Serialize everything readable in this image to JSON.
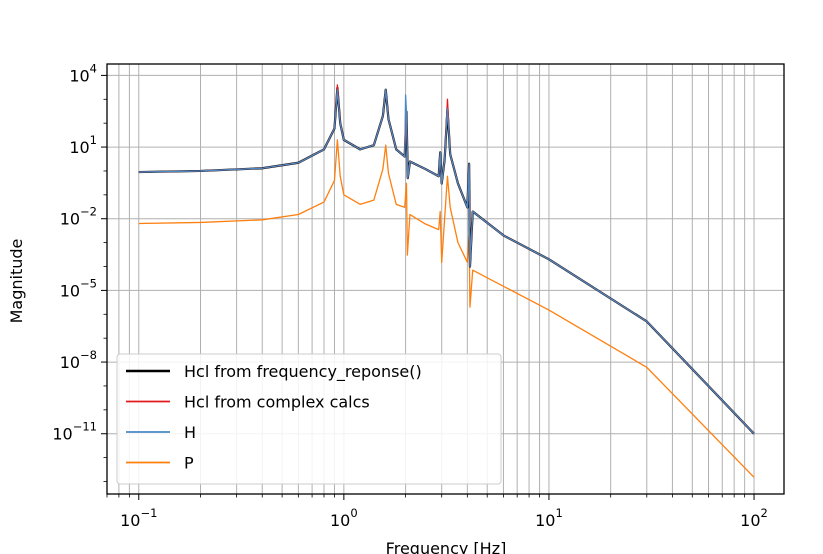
{
  "chart_data": {
    "type": "line",
    "title": "",
    "xlabel": "Frequency [Hz]",
    "ylabel": "Magnitude",
    "xscale": "log",
    "yscale": "log",
    "xlim": [
      0.07,
      140
    ],
    "ylim": [
      3e-14,
      30000
    ],
    "grid": true,
    "legend_position": "lower-left",
    "x_ticks": [
      {
        "base": "10",
        "exp": "−1",
        "value": 0.1
      },
      {
        "base": "10",
        "exp": "0",
        "value": 1
      },
      {
        "base": "10",
        "exp": "1",
        "value": 10
      },
      {
        "base": "10",
        "exp": "2",
        "value": 100
      }
    ],
    "y_ticks": [
      {
        "base": "10",
        "exp": "4",
        "value": 10000
      },
      {
        "base": "10",
        "exp": "1",
        "value": 10
      },
      {
        "base": "10",
        "exp": "−2",
        "value": 0.01
      },
      {
        "base": "10",
        "exp": "−5",
        "value": 1e-05
      },
      {
        "base": "10",
        "exp": "−8",
        "value": 1e-08
      },
      {
        "base": "10",
        "exp": "−11",
        "value": 1e-11
      }
    ],
    "series": [
      {
        "name": "Hcl from frequency_reponse()",
        "color": "#000000",
        "width": 2.2,
        "points": [
          [
            0.1,
            0.9
          ],
          [
            0.2,
            1.0
          ],
          [
            0.4,
            1.3
          ],
          [
            0.6,
            2.2
          ],
          [
            0.8,
            8
          ],
          [
            0.9,
            60
          ],
          [
            0.93,
            3000
          ],
          [
            0.96,
            100
          ],
          [
            1.0,
            20
          ],
          [
            1.2,
            8
          ],
          [
            1.4,
            12
          ],
          [
            1.55,
            200
          ],
          [
            1.6,
            2500
          ],
          [
            1.65,
            150
          ],
          [
            1.8,
            8
          ],
          [
            1.98,
            4
          ],
          [
            2.02,
            300
          ],
          [
            2.05,
            0.5
          ],
          [
            2.1,
            2.5
          ],
          [
            2.5,
            1.2
          ],
          [
            2.9,
            0.6
          ],
          [
            2.95,
            6
          ],
          [
            3.0,
            0.3
          ],
          [
            3.1,
            3
          ],
          [
            3.2,
            400
          ],
          [
            3.3,
            5
          ],
          [
            3.6,
            0.3
          ],
          [
            4.0,
            0.03
          ],
          [
            4.08,
            2
          ],
          [
            4.12,
            0.0001
          ],
          [
            4.25,
            0.02
          ],
          [
            6,
            0.002
          ],
          [
            10,
            0.0002
          ],
          [
            30,
            5e-07
          ],
          [
            100,
            1e-11
          ]
        ]
      },
      {
        "name": "Hcl from complex calcs",
        "color": "#e41a1c",
        "width": 1.3,
        "points": [
          [
            0.1,
            0.9
          ],
          [
            0.2,
            1.0
          ],
          [
            0.4,
            1.3
          ],
          [
            0.6,
            2.2
          ],
          [
            0.8,
            8
          ],
          [
            0.9,
            60
          ],
          [
            0.93,
            4000
          ],
          [
            0.96,
            100
          ],
          [
            1.0,
            20
          ],
          [
            1.2,
            8
          ],
          [
            1.4,
            12
          ],
          [
            1.55,
            200
          ],
          [
            1.6,
            2500
          ],
          [
            1.65,
            150
          ],
          [
            1.8,
            8
          ],
          [
            1.98,
            4
          ],
          [
            2.02,
            300
          ],
          [
            2.05,
            0.5
          ],
          [
            2.1,
            2.5
          ],
          [
            2.5,
            1.2
          ],
          [
            2.9,
            0.6
          ],
          [
            2.95,
            6
          ],
          [
            3.0,
            0.3
          ],
          [
            3.1,
            3
          ],
          [
            3.2,
            1000
          ],
          [
            3.3,
            5
          ],
          [
            3.6,
            0.3
          ],
          [
            4.0,
            0.03
          ],
          [
            4.08,
            2
          ],
          [
            4.12,
            0.0001
          ],
          [
            4.25,
            0.02
          ],
          [
            6,
            0.002
          ],
          [
            10,
            0.0002
          ],
          [
            30,
            5e-07
          ],
          [
            100,
            1e-11
          ]
        ]
      },
      {
        "name": "H",
        "color": "#4a8ac4",
        "width": 1.3,
        "points": [
          [
            0.1,
            0.9
          ],
          [
            0.2,
            1.0
          ],
          [
            0.4,
            1.3
          ],
          [
            0.6,
            2.2
          ],
          [
            0.8,
            8
          ],
          [
            0.9,
            60
          ],
          [
            0.93,
            2500
          ],
          [
            0.96,
            100
          ],
          [
            1.0,
            20
          ],
          [
            1.2,
            8
          ],
          [
            1.4,
            12
          ],
          [
            1.55,
            200
          ],
          [
            1.6,
            2500
          ],
          [
            1.65,
            150
          ],
          [
            1.8,
            8
          ],
          [
            1.98,
            4
          ],
          [
            2.0,
            1500
          ],
          [
            2.02,
            300
          ],
          [
            2.05,
            0.5
          ],
          [
            2.1,
            2.5
          ],
          [
            2.5,
            1.2
          ],
          [
            2.9,
            0.6
          ],
          [
            2.95,
            6
          ],
          [
            3.0,
            0.3
          ],
          [
            3.1,
            3
          ],
          [
            3.2,
            400
          ],
          [
            3.3,
            5
          ],
          [
            3.6,
            0.3
          ],
          [
            4.0,
            0.03
          ],
          [
            4.08,
            2
          ],
          [
            4.12,
            0.0001
          ],
          [
            4.25,
            0.02
          ],
          [
            6,
            0.002
          ],
          [
            10,
            0.0002
          ],
          [
            30,
            5e-07
          ],
          [
            100,
            1e-11
          ]
        ]
      },
      {
        "name": "P",
        "color": "#ff7f0e",
        "width": 1.3,
        "points": [
          [
            0.1,
            0.0063
          ],
          [
            0.2,
            0.007
          ],
          [
            0.4,
            0.009
          ],
          [
            0.6,
            0.015
          ],
          [
            0.8,
            0.05
          ],
          [
            0.9,
            0.4
          ],
          [
            0.93,
            20
          ],
          [
            0.96,
            0.6
          ],
          [
            1.0,
            0.1
          ],
          [
            1.2,
            0.04
          ],
          [
            1.4,
            0.06
          ],
          [
            1.55,
            1.2
          ],
          [
            1.6,
            12
          ],
          [
            1.65,
            0.8
          ],
          [
            1.8,
            0.04
          ],
          [
            1.98,
            0.03
          ],
          [
            2.02,
            0.3
          ],
          [
            2.04,
            0.0003
          ],
          [
            2.1,
            0.015
          ],
          [
            2.5,
            0.006
          ],
          [
            2.9,
            0.0035
          ],
          [
            2.95,
            0.02
          ],
          [
            3.0,
            0.00015
          ],
          [
            3.1,
            0.01
          ],
          [
            3.2,
            0.6
          ],
          [
            3.3,
            0.03
          ],
          [
            3.6,
            0.001
          ],
          [
            4.0,
            0.00015
          ],
          [
            4.08,
            0.002
          ],
          [
            4.12,
            2e-06
          ],
          [
            4.25,
            7e-05
          ],
          [
            10,
            1.5e-06
          ],
          [
            30,
            6e-09
          ],
          [
            100,
            1.5e-13
          ]
        ]
      }
    ]
  }
}
